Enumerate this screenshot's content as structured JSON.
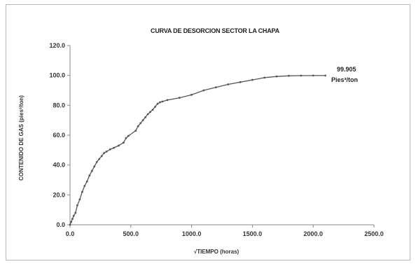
{
  "chart_data": {
    "type": "line",
    "title": "CURVA DE DESORCION SECTOR LA CHAPA",
    "xlabel": "√TIEMPO (horas)",
    "ylabel": "CONTENIDO DE GAS (pies³/ton)",
    "xlim": [
      0,
      2500
    ],
    "ylim": [
      0,
      120
    ],
    "x_ticks": [
      "0.0",
      "500.0",
      "1000.0",
      "1500.0",
      "2000.0",
      "2500.0"
    ],
    "y_ticks": [
      "0.0",
      "20.0",
      "40.0",
      "60.0",
      "80.0",
      "100.0",
      "120.0"
    ],
    "grid": false,
    "legend": "none",
    "line_color": "#555555",
    "annotation": {
      "value": "99.905",
      "unit": "Pies³/ton"
    },
    "series": [
      {
        "x": [
          0,
          10,
          20,
          30,
          45,
          60,
          80,
          100,
          120,
          140,
          160,
          180,
          200,
          220,
          240,
          260,
          280,
          300,
          330,
          360,
          400,
          440,
          460,
          480,
          540,
          560,
          580,
          600,
          620,
          640,
          660,
          680,
          700,
          720,
          740,
          760,
          800,
          900,
          1000,
          1100,
          1200,
          1300,
          1400,
          1500,
          1600,
          1700,
          1800,
          1900,
          2000,
          2100
        ],
        "y": [
          0,
          2,
          4,
          6,
          8,
          13,
          17,
          22,
          26,
          29,
          33,
          36,
          39,
          42,
          44,
          46,
          48,
          49,
          50.5,
          51.5,
          53,
          55,
          58,
          59.5,
          63,
          66,
          68,
          70,
          72,
          74,
          75.5,
          77,
          79,
          81,
          82,
          82.5,
          83.5,
          85,
          87,
          90,
          92,
          94,
          95.5,
          97,
          98.5,
          99.3,
          99.7,
          99.85,
          99.9,
          99.905
        ]
      }
    ]
  }
}
